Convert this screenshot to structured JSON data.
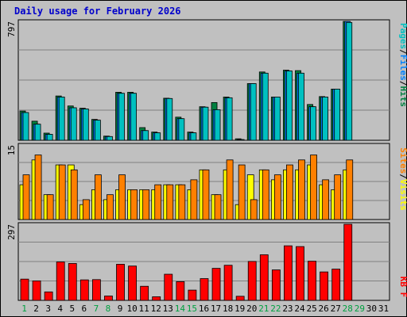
{
  "title": "Daily usage for February 2026",
  "colors": {
    "background": "#c0c0c0",
    "panel": "#c0c0c0",
    "title": "#0000cc",
    "pages": "#00c0c0",
    "files": "#0080ff",
    "hits": "#008040",
    "visits": "#ffff00",
    "sites": "#ff8000",
    "kbytes": "#ff0000",
    "weekend": "#00a040",
    "weekday": "#000000"
  },
  "chart_data": [
    {
      "type": "bar",
      "name_label": "hits-files-pages",
      "ymax_label": "797",
      "ylim": [
        0,
        797
      ],
      "legend": [
        "Pages",
        "/",
        "Files",
        "/",
        "Hits"
      ],
      "categories": [
        "1",
        "2",
        "3",
        "4",
        "5",
        "6",
        "7",
        "8",
        "9",
        "10",
        "11",
        "12",
        "13",
        "14",
        "15",
        "16",
        "17",
        "18",
        "19",
        "20",
        "21",
        "22",
        "23",
        "24",
        "25",
        "26",
        "27",
        "28",
        "29",
        "30",
        "31"
      ],
      "series": [
        {
          "name": "Hits",
          "values": [
            196,
            128,
            48,
            297,
            230,
            215,
            140,
            28,
            322,
            322,
            85,
            55,
            282,
            155,
            55,
            225,
            253,
            290,
            10,
            380,
            458,
            290,
            470,
            467,
            240,
            293,
            343,
            797,
            0,
            0,
            0
          ]
        },
        {
          "name": "Files",
          "values": [
            186,
            108,
            40,
            290,
            218,
            210,
            135,
            25,
            315,
            315,
            65,
            50,
            280,
            145,
            50,
            222,
            205,
            285,
            5,
            380,
            450,
            290,
            465,
            450,
            225,
            290,
            343,
            797,
            0,
            0,
            0
          ]
        },
        {
          "name": "Pages",
          "values": [
            186,
            108,
            40,
            290,
            218,
            210,
            135,
            25,
            315,
            315,
            65,
            50,
            280,
            145,
            50,
            222,
            205,
            285,
            5,
            380,
            450,
            290,
            465,
            450,
            225,
            290,
            343,
            790,
            0,
            0,
            0
          ]
        }
      ]
    },
    {
      "type": "bar",
      "name_label": "visits-sites",
      "ymax_label": "15",
      "ylim": [
        0,
        15
      ],
      "legend": [
        "Sites",
        "/",
        "Visits"
      ],
      "series": [
        {
          "name": "Visits",
          "values": [
            7,
            12,
            5,
            11,
            11,
            3,
            6,
            4,
            6,
            6,
            6,
            6,
            7,
            7,
            6,
            10,
            5,
            10,
            3,
            9,
            10,
            8,
            10,
            10,
            11,
            7,
            6,
            10,
            0,
            0,
            0
          ]
        },
        {
          "name": "Sites",
          "values": [
            9,
            13,
            5,
            11,
            10,
            4,
            9,
            5,
            9,
            6,
            6,
            7,
            7,
            7,
            8,
            10,
            5,
            12,
            11,
            4,
            10,
            9,
            11,
            12,
            13,
            8,
            9,
            12,
            0,
            0,
            0
          ]
        }
      ]
    },
    {
      "type": "bar",
      "name_label": "kbytes",
      "ymax_label": "297",
      "ylim": [
        0,
        297
      ],
      "legend": [
        "KB",
        "F"
      ],
      "series": [
        {
          "name": "KB F",
          "values": [
            83,
            76,
            33,
            150,
            144,
            80,
            81,
            17,
            141,
            134,
            55,
            14,
            102,
            73,
            40,
            85,
            125,
            137,
            16,
            152,
            178,
            119,
            213,
            210,
            153,
            111,
            122,
            297,
            0,
            0,
            0
          ]
        }
      ]
    }
  ],
  "x_labels": [
    "1",
    "2",
    "3",
    "4",
    "5",
    "6",
    "7",
    "8",
    "9",
    "10",
    "11",
    "12",
    "13",
    "14",
    "15",
    "16",
    "17",
    "18",
    "19",
    "20",
    "21",
    "22",
    "23",
    "24",
    "25",
    "26",
    "27",
    "28",
    "29",
    "30",
    "31"
  ],
  "weekend_days": [
    1,
    7,
    8,
    14,
    15,
    21,
    22,
    28,
    29
  ]
}
